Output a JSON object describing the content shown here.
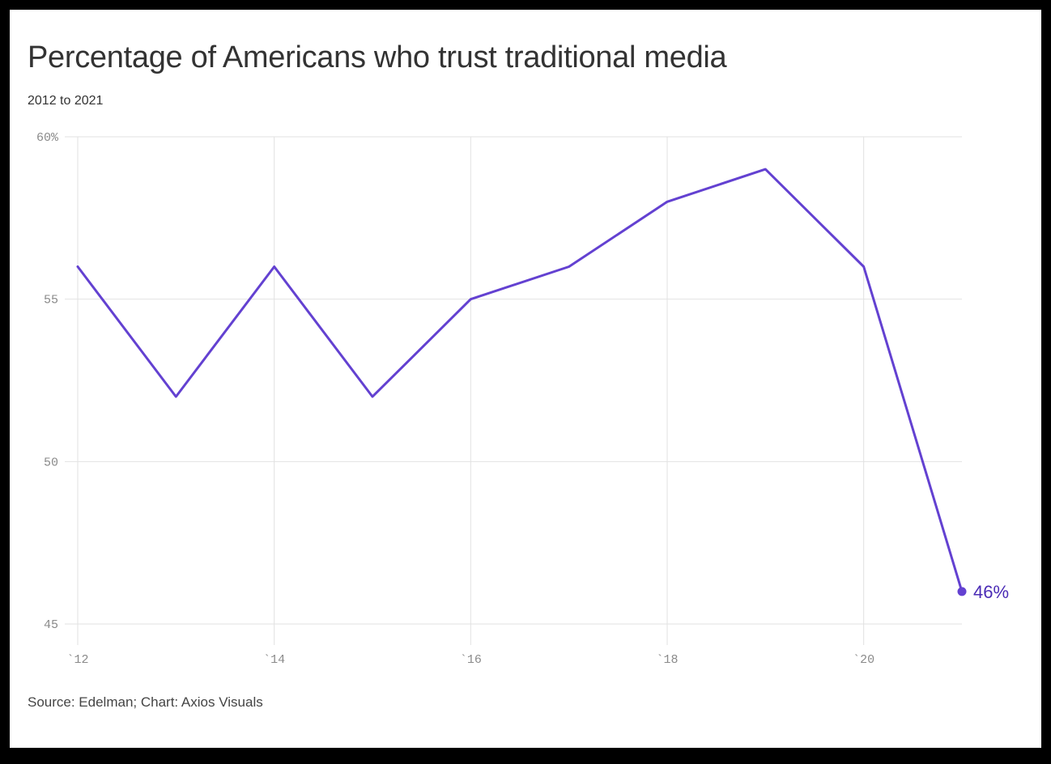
{
  "title": "Percentage of Americans who trust traditional media",
  "subtitle": "2012 to 2021",
  "source": "Source: Edelman; Chart: Axios Visuals",
  "colors": {
    "line": "#6341d1",
    "end_label": "#4a2bb5",
    "grid": "#e2e2e2",
    "tick_text": "#8a8a8a",
    "title_text": "#333333"
  },
  "chart_data": {
    "type": "line",
    "title": "Percentage of Americans who trust traditional media",
    "subtitle": "2012 to 2021",
    "xlabel": "",
    "ylabel": "",
    "x": [
      2012,
      2013,
      2014,
      2015,
      2016,
      2017,
      2018,
      2019,
      2020,
      2021
    ],
    "series": [
      {
        "values": [
          56,
          52,
          56,
          52,
          55,
          56,
          58,
          59,
          56,
          46
        ]
      }
    ],
    "ylim": [
      45,
      60
    ],
    "xlim": [
      2012,
      2021
    ],
    "y_ticks": [
      60,
      55,
      50,
      45
    ],
    "y_tick_labels": [
      "60%",
      "55",
      "50",
      "45"
    ],
    "x_ticks": [
      2012,
      2014,
      2016,
      2018,
      2020
    ],
    "x_tick_labels": [
      "`12",
      "`14",
      "`16",
      "`18",
      "`20"
    ],
    "end_label": "46%",
    "grid": true,
    "legend": "none"
  }
}
